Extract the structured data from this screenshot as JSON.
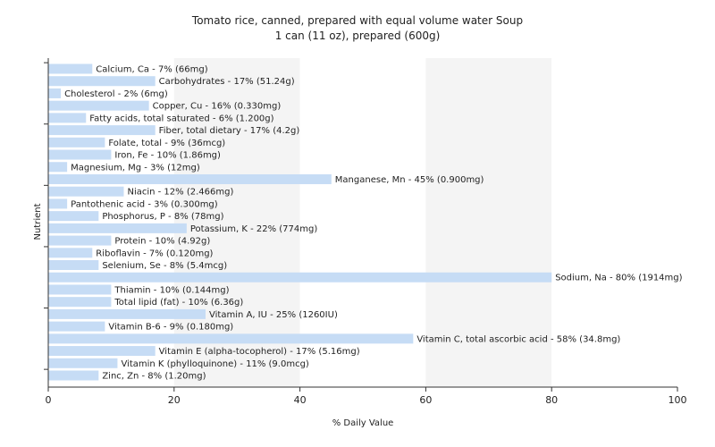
{
  "chart_data": {
    "type": "bar",
    "orientation": "horizontal",
    "title": "Tomato rice, canned, prepared with equal volume water Soup",
    "subtitle": "1 can (11 oz), prepared (600g)",
    "xlabel": "% Daily Value",
    "ylabel": "Nutrient",
    "xlim": [
      0,
      100
    ],
    "xticks": [
      0,
      20,
      40,
      60,
      80,
      100
    ],
    "grid": "vertical bands",
    "bar_color": "#c6dcf5",
    "categories": [
      "Calcium, Ca",
      "Carbohydrates",
      "Cholesterol",
      "Copper, Cu",
      "Fatty acids, total saturated",
      "Fiber, total dietary",
      "Folate, total",
      "Iron, Fe",
      "Magnesium, Mg",
      "Manganese, Mn",
      "Niacin",
      "Pantothenic acid",
      "Phosphorus, P",
      "Potassium, K",
      "Protein",
      "Riboflavin",
      "Selenium, Se",
      "Sodium, Na",
      "Thiamin",
      "Total lipid (fat)",
      "Vitamin A, IU",
      "Vitamin B-6",
      "Vitamin C, total ascorbic acid",
      "Vitamin E (alpha-tocopherol)",
      "Vitamin K (phylloquinone)",
      "Zinc, Zn"
    ],
    "values": [
      7,
      17,
      2,
      16,
      6,
      17,
      9,
      10,
      3,
      45,
      12,
      3,
      8,
      22,
      10,
      7,
      8,
      80,
      10,
      10,
      25,
      9,
      58,
      17,
      11,
      8
    ],
    "labels": [
      "Calcium, Ca - 7% (66mg)",
      "Carbohydrates - 17% (51.24g)",
      "Cholesterol - 2% (6mg)",
      "Copper, Cu - 16% (0.330mg)",
      "Fatty acids, total saturated - 6% (1.200g)",
      "Fiber, total dietary - 17% (4.2g)",
      "Folate, total - 9% (36mcg)",
      "Iron, Fe - 10% (1.86mg)",
      "Magnesium, Mg - 3% (12mg)",
      "Manganese, Mn - 45% (0.900mg)",
      "Niacin - 12% (2.466mg)",
      "Pantothenic acid - 3% (0.300mg)",
      "Phosphorus, P - 8% (78mg)",
      "Potassium, K - 22% (774mg)",
      "Protein - 10% (4.92g)",
      "Riboflavin - 7% (0.120mg)",
      "Selenium, Se - 8% (5.4mcg)",
      "Sodium, Na - 80% (1914mg)",
      "Thiamin - 10% (0.144mg)",
      "Total lipid (fat) - 10% (6.36g)",
      "Vitamin A, IU - 25% (1260IU)",
      "Vitamin B-6 - 9% (0.180mg)",
      "Vitamin C, total ascorbic acid - 58% (34.8mg)",
      "Vitamin E (alpha-tocopherol) - 17% (5.16mg)",
      "Vitamin K (phylloquinone) - 11% (9.0mcg)",
      "Zinc, Zn - 8% (1.20mg)"
    ]
  }
}
